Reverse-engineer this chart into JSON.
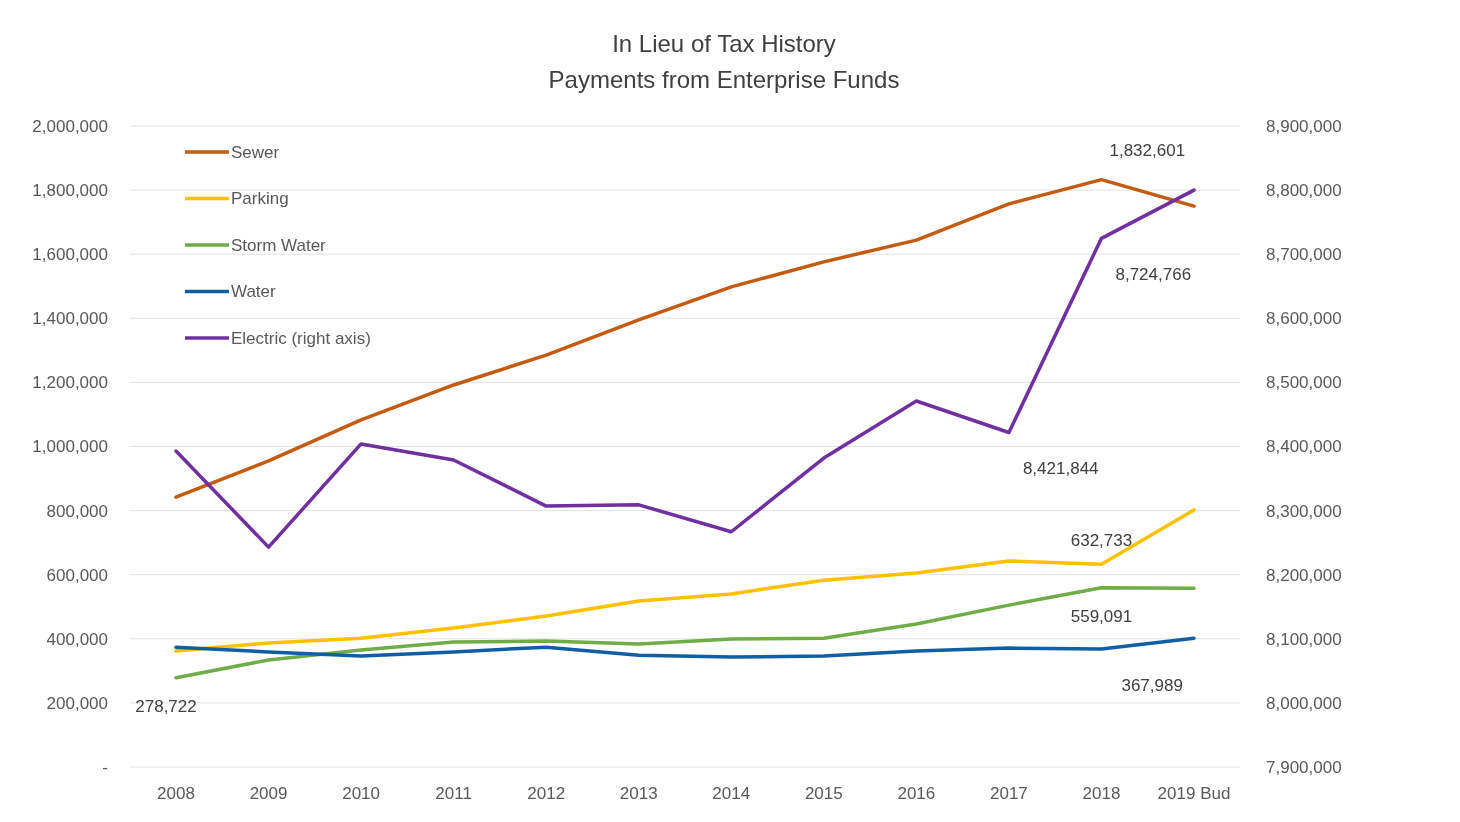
{
  "chart_data": {
    "type": "line",
    "title": "In Lieu of Tax History",
    "subtitle": "Payments from Enterprise Funds",
    "categories": [
      "2008",
      "2009",
      "2010",
      "2011",
      "2012",
      "2013",
      "2014",
      "2015",
      "2016",
      "2017",
      "2018",
      "2019 Bud"
    ],
    "ylim": [
      0,
      2000000
    ],
    "yticks": [
      {
        "value": 0,
        "label": "-"
      },
      {
        "value": 200000,
        "label": "200,000"
      },
      {
        "value": 400000,
        "label": "400,000"
      },
      {
        "value": 600000,
        "label": "600,000"
      },
      {
        "value": 800000,
        "label": "800,000"
      },
      {
        "value": 1000000,
        "label": "1,000,000"
      },
      {
        "value": 1200000,
        "label": "1,200,000"
      },
      {
        "value": 1400000,
        "label": "1,400,000"
      },
      {
        "value": 1600000,
        "label": "1,600,000"
      },
      {
        "value": 1800000,
        "label": "1,800,000"
      },
      {
        "value": 2000000,
        "label": "2,000,000"
      }
    ],
    "y2lim": [
      7900000,
      8900000
    ],
    "y2ticks": [
      {
        "value": 7900000,
        "label": "7,900,000"
      },
      {
        "value": 8000000,
        "label": "8,000,000"
      },
      {
        "value": 8100000,
        "label": "8,100,000"
      },
      {
        "value": 8200000,
        "label": "8,200,000"
      },
      {
        "value": 8300000,
        "label": "8,300,000"
      },
      {
        "value": 8400000,
        "label": "8,400,000"
      },
      {
        "value": 8500000,
        "label": "8,500,000"
      },
      {
        "value": 8600000,
        "label": "8,600,000"
      },
      {
        "value": 8700000,
        "label": "8,700,000"
      },
      {
        "value": 8800000,
        "label": "8,800,000"
      },
      {
        "value": 8900000,
        "label": "8,900,000"
      }
    ],
    "grid": "y",
    "legend": "top left",
    "marker": "none",
    "line_style": "solid",
    "series": [
      {
        "name": "Sewer",
        "color": "#c55a11",
        "values": [
          842000,
          955000,
          1083000,
          1192000,
          1285000,
          1395000,
          1498000,
          1576000,
          1644000,
          1757000,
          1832601,
          1750000
        ],
        "value_labels": [
          null,
          null,
          null,
          null,
          null,
          null,
          null,
          null,
          null,
          null,
          "1,832,601",
          null
        ]
      },
      {
        "name": "Parking",
        "color": "#ffc000",
        "values": [
          362000,
          387000,
          402000,
          434000,
          471000,
          518000,
          540000,
          583000,
          605000,
          643000,
          632733,
          802000
        ],
        "value_labels": [
          null,
          null,
          null,
          null,
          null,
          null,
          null,
          null,
          null,
          null,
          "632,733",
          null
        ]
      },
      {
        "name": "Storm Water",
        "color": "#70ad47",
        "values": [
          278722,
          334000,
          365000,
          390000,
          393000,
          384000,
          399000,
          402000,
          446000,
          505000,
          559091,
          558000
        ],
        "value_labels": [
          "278,722",
          null,
          null,
          null,
          null,
          null,
          null,
          null,
          null,
          null,
          "559,091",
          null
        ]
      },
      {
        "name": "Water",
        "color": "#0f5fa6",
        "values": [
          374000,
          359000,
          346000,
          359000,
          374000,
          349000,
          343000,
          346000,
          362000,
          371000,
          367989,
          402000
        ],
        "value_labels": [
          null,
          null,
          null,
          null,
          null,
          null,
          null,
          null,
          null,
          null,
          "367,989",
          null
        ]
      },
      {
        "name": "Electric (right axis)",
        "color": "#7030a0",
        "axis": "y2",
        "values": [
          8393000,
          8243000,
          8404000,
          8379000,
          8307000,
          8309000,
          8267000,
          8382000,
          8471000,
          8421844,
          8724766,
          8800000
        ],
        "value_labels": [
          null,
          null,
          null,
          null,
          null,
          null,
          null,
          null,
          null,
          "8,421,844",
          "8,724,766",
          null
        ]
      }
    ]
  }
}
